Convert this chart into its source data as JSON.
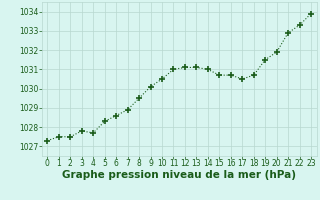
{
  "x": [
    0,
    1,
    2,
    3,
    4,
    5,
    6,
    7,
    8,
    9,
    10,
    11,
    12,
    13,
    14,
    15,
    16,
    17,
    18,
    19,
    20,
    21,
    22,
    23
  ],
  "y": [
    1027.3,
    1027.5,
    1027.5,
    1027.8,
    1027.7,
    1028.3,
    1028.6,
    1028.9,
    1029.5,
    1030.1,
    1030.5,
    1031.0,
    1031.1,
    1031.1,
    1031.0,
    1030.7,
    1030.7,
    1030.5,
    1030.7,
    1031.5,
    1031.9,
    1032.9,
    1033.3,
    1033.9
  ],
  "ylim": [
    1026.5,
    1034.5
  ],
  "xlim": [
    -0.5,
    23.5
  ],
  "yticks": [
    1027,
    1028,
    1029,
    1030,
    1031,
    1032,
    1033,
    1034
  ],
  "xticks": [
    0,
    1,
    2,
    3,
    4,
    5,
    6,
    7,
    8,
    9,
    10,
    11,
    12,
    13,
    14,
    15,
    16,
    17,
    18,
    19,
    20,
    21,
    22,
    23
  ],
  "xlabel": "Graphe pression niveau de la mer (hPa)",
  "line_color": "#1a5c1a",
  "marker_color": "#1a5c1a",
  "bg_color": "#d8f5f0",
  "grid_color": "#b8d8d0",
  "tick_label_color": "#1a5c1a",
  "xlabel_color": "#1a5c1a",
  "tick_fontsize": 5.5,
  "xlabel_fontsize": 7.5
}
